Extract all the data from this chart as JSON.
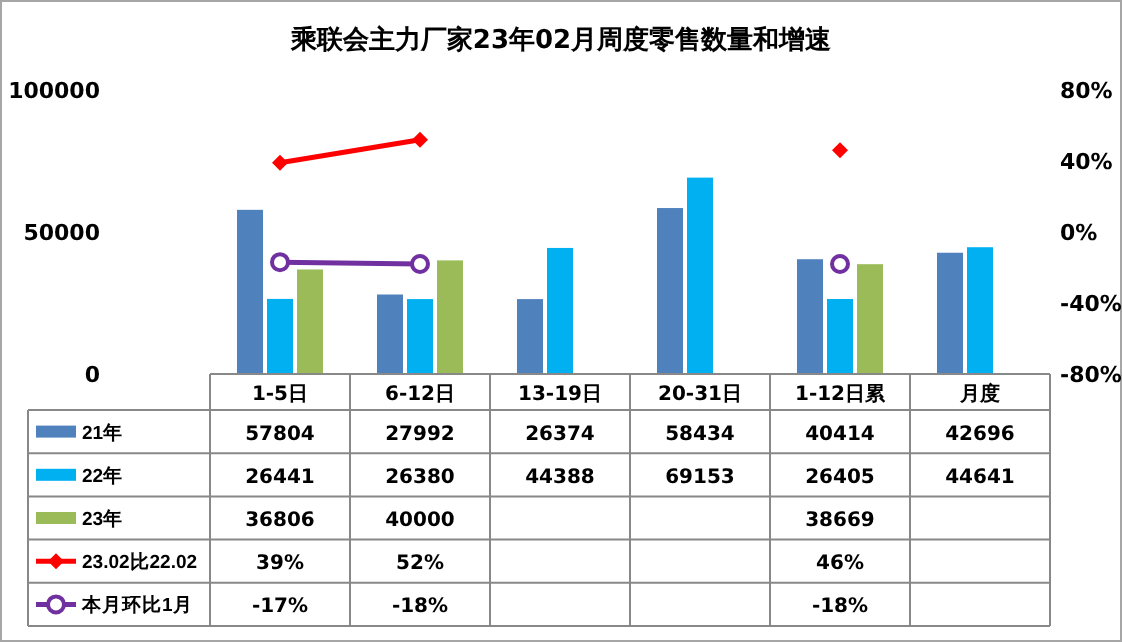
{
  "chart_data": {
    "type": "bar",
    "title": "乘联会主力厂家23年02月周度零售数量和增速",
    "categories": [
      "1-5日",
      "6-12日",
      "13-19日",
      "20-31日",
      "1-12日累",
      "月度"
    ],
    "series": [
      {
        "name": "21年",
        "color": "#4f81bd",
        "values": [
          57804,
          27992,
          26374,
          58434,
          40414,
          42696
        ]
      },
      {
        "name": "22年",
        "color": "#00b0f0",
        "values": [
          26441,
          26380,
          44388,
          69153,
          26405,
          44641
        ]
      },
      {
        "name": "23年",
        "color": "#9bbb59",
        "values": [
          36806,
          40000,
          null,
          null,
          38669,
          null
        ]
      },
      {
        "name": "23.02比22.02",
        "type": "line",
        "axis": "y2",
        "color": "#ff0000",
        "marker": "diamond",
        "values": [
          39,
          52,
          null,
          null,
          46,
          null
        ],
        "value_labels": [
          "39%",
          "52%",
          null,
          null,
          "46%",
          null
        ]
      },
      {
        "name": "本月环比1月",
        "type": "line",
        "axis": "y2",
        "color": "#7030a0",
        "marker": "circle",
        "values": [
          -17,
          -18,
          null,
          null,
          -18,
          null
        ],
        "value_labels": [
          "-17%",
          "-18%",
          null,
          null,
          "-18%",
          null
        ]
      }
    ],
    "ylim": [
      0,
      100000
    ],
    "yticks": [
      0,
      50000,
      100000
    ],
    "y2lim": [
      -80,
      80
    ],
    "y2ticks": [
      {
        "value": -80,
        "label": "-80%"
      },
      {
        "value": -40,
        "label": "-40%"
      },
      {
        "value": 0,
        "label": "0%"
      },
      {
        "value": 40,
        "label": "40%"
      },
      {
        "value": 80,
        "label": "80%"
      }
    ],
    "data_labels": true,
    "legend": "bottom"
  }
}
